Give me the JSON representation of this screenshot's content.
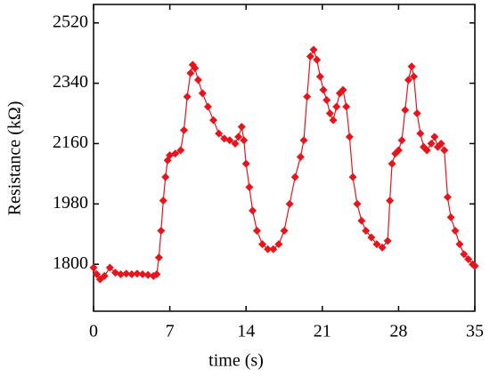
{
  "chart_data": {
    "type": "line",
    "x_label": "time (s)",
    "y_label": "Resistance (kΩ)",
    "xlim": [
      0,
      35
    ],
    "xticks": [
      0,
      7,
      14,
      21,
      28,
      35
    ],
    "ylim": [
      1660,
      2575
    ],
    "yticks": [
      1800,
      1980,
      2160,
      2340,
      2520
    ],
    "grid": false,
    "markers": "diamond",
    "series": [
      {
        "color": "#e8141c",
        "x": [
          0,
          0.3,
          0.6,
          1,
          1.5,
          2,
          2.5,
          3,
          3.5,
          4,
          4.5,
          5,
          5.5,
          5.8,
          6,
          6.2,
          6.4,
          6.6,
          6.8,
          7,
          7.5,
          8,
          8.3,
          8.6,
          8.9,
          9.1,
          9.3,
          9.6,
          10,
          10.5,
          11,
          11.5,
          12,
          12.5,
          13,
          13.3,
          13.6,
          13.8,
          14,
          14.3,
          14.6,
          15,
          15.5,
          16,
          16.5,
          17,
          17.5,
          18,
          18.5,
          19,
          19.3,
          19.6,
          19.9,
          20.2,
          20.5,
          20.8,
          21.1,
          21.4,
          21.7,
          22,
          22.3,
          22.6,
          22.9,
          23.2,
          23.5,
          23.8,
          24.2,
          24.6,
          25,
          25.5,
          26,
          26.5,
          27,
          27.2,
          27.4,
          27.7,
          28,
          28.3,
          28.6,
          28.9,
          29.2,
          29.4,
          29.7,
          30,
          30.3,
          30.6,
          31,
          31.3,
          31.6,
          31.9,
          32.2,
          32.5,
          32.8,
          33.2,
          33.6,
          34,
          34.4,
          34.8,
          35
        ],
        "values": [
          1790,
          1770,
          1755,
          1765,
          1790,
          1775,
          1770,
          1772,
          1770,
          1772,
          1770,
          1768,
          1765,
          1770,
          1820,
          1900,
          1990,
          2060,
          2110,
          2125,
          2130,
          2140,
          2200,
          2300,
          2370,
          2395,
          2385,
          2350,
          2310,
          2270,
          2230,
          2190,
          2175,
          2170,
          2160,
          2180,
          2210,
          2170,
          2100,
          2030,
          1960,
          1900,
          1860,
          1845,
          1845,
          1860,
          1900,
          1980,
          2060,
          2120,
          2170,
          2300,
          2420,
          2440,
          2410,
          2360,
          2320,
          2290,
          2250,
          2230,
          2270,
          2310,
          2320,
          2270,
          2180,
          2060,
          1980,
          1930,
          1900,
          1880,
          1860,
          1850,
          1870,
          1990,
          2100,
          2130,
          2140,
          2170,
          2260,
          2350,
          2390,
          2360,
          2250,
          2190,
          2150,
          2140,
          2160,
          2180,
          2150,
          2160,
          2140,
          2000,
          1940,
          1900,
          1860,
          1830,
          1815,
          1800,
          1795
        ]
      }
    ]
  }
}
